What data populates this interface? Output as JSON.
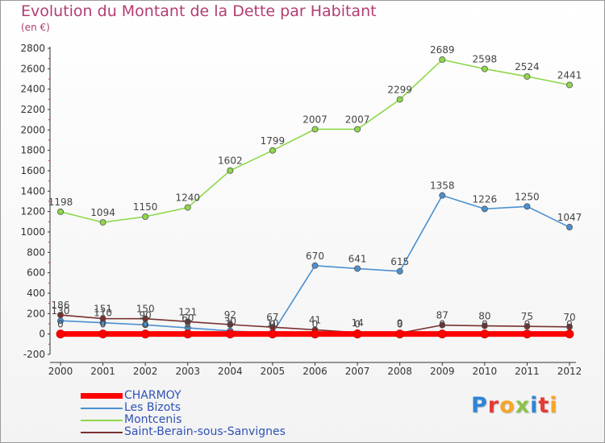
{
  "chart_data": {
    "type": "line",
    "title": "Evolution du Montant de la Dette par Habitant",
    "subtitle": "(en €)",
    "x": [
      "2000",
      "2001",
      "2002",
      "2003",
      "2004",
      "2005",
      "2006",
      "2007",
      "2008",
      "2009",
      "2010",
      "2011",
      "2012"
    ],
    "ylim": [
      -200,
      2800
    ],
    "yticks": [
      -200,
      0,
      200,
      400,
      600,
      800,
      1000,
      1200,
      1400,
      1600,
      1800,
      2000,
      2200,
      2400,
      2600,
      2800
    ],
    "grid": false,
    "legend_position": "bottom-left",
    "series": [
      {
        "name": "CHARMOY",
        "color": "#ff0000",
        "values": [
          0,
          0,
          0,
          0,
          0,
          0,
          0,
          0,
          0,
          0,
          0,
          0,
          0
        ],
        "labels": [
          "0",
          "0",
          "0",
          "0",
          "0",
          "0",
          "0",
          "0",
          "0",
          "0",
          "0",
          "0",
          "0"
        ]
      },
      {
        "name": "Les Bizots",
        "color": "#4a90d0",
        "values": [
          130,
          110,
          90,
          60,
          30,
          10,
          670,
          641,
          615,
          1358,
          1226,
          1250,
          1047
        ],
        "labels": [
          "130",
          "110",
          "90",
          "60",
          "30",
          "10",
          "670",
          "641",
          "615",
          "1358",
          "1226",
          "1250",
          "1047"
        ]
      },
      {
        "name": "Montcenis",
        "color": "#8ed84a",
        "values": [
          1198,
          1094,
          1150,
          1240,
          1602,
          1799,
          2007,
          2007,
          2299,
          2689,
          2598,
          2524,
          2441
        ],
        "labels": [
          "1198",
          "1094",
          "1150",
          "1240",
          "1602",
          "1799",
          "2007",
          "2007",
          "2299",
          "2689",
          "2598",
          "2524",
          "2441"
        ]
      },
      {
        "name": "Saint-Berain-sous-Sanvignes",
        "color": "#7a2f2f",
        "values": [
          186,
          151,
          150,
          121,
          92,
          67,
          41,
          14,
          9,
          87,
          80,
          75,
          70
        ],
        "labels": [
          "186",
          "151",
          "150",
          "121",
          "92",
          "67",
          "41",
          "14",
          "9",
          "87",
          "80",
          "75",
          "70"
        ]
      }
    ]
  },
  "brand": {
    "letters": [
      "P",
      "r",
      "o",
      "x",
      "i",
      "t",
      "i"
    ],
    "colors": [
      "#2f84d6",
      "#e53935",
      "#f5a623",
      "#8bc34a",
      "#2f84d6",
      "#e53935",
      "#f5a623"
    ]
  }
}
